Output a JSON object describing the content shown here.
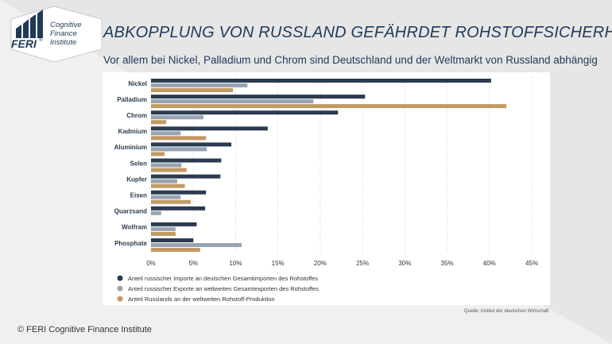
{
  "header": {
    "title": "ABKOPPLUNG VON RUSSLAND GEFÄHRDET ROHSTOFFSICHERHEIT",
    "subtitle": "Vor allem bei Nickel, Palladium und Chrom sind Deutschland und der Weltmarkt von Russland abhängig"
  },
  "logo": {
    "brand": "FERI",
    "mark": "®",
    "line1": "Cognitive",
    "line2": "Finance",
    "line3": "Institute"
  },
  "footer": {
    "source": "Quelle: Institut der deutschen Wirtschaft",
    "copyright": "© FERI Cognitive Finance Institute"
  },
  "colors": {
    "dark": "#2b3b50",
    "light": "#99a4b2",
    "gold": "#c39a62",
    "title": "#1f3a5a"
  },
  "chart_data": {
    "type": "bar",
    "orientation": "horizontal",
    "categories": [
      "Nickel",
      "Palladium",
      "Chrom",
      "Kadmium",
      "Aluminium",
      "Selen",
      "Kupfer",
      "Eisen",
      "Quarzsand",
      "Wolfram",
      "Phosphate"
    ],
    "series": [
      {
        "name": "Anteil russischer Importe an deutschen Gesamtimporten des Rohstoffes",
        "values": [
          40.2,
          25.3,
          22.1,
          13.8,
          9.5,
          8.3,
          8.2,
          6.5,
          6.4,
          5.4,
          5.0
        ]
      },
      {
        "name": "Anteil russischer Exporte an weltweiten Gesamtexporten des Rohstoffes",
        "values": [
          11.4,
          19.2,
          6.2,
          3.5,
          6.6,
          3.6,
          3.1,
          3.5,
          1.2,
          2.9,
          10.7
        ]
      },
      {
        "name": "Anteil Russlands an der weltweiten Rohstoff-Produktion",
        "values": [
          9.7,
          42.0,
          1.8,
          6.5,
          1.6,
          4.2,
          4.0,
          4.7,
          0,
          2.9,
          5.8
        ]
      }
    ],
    "xlim": [
      0,
      45
    ],
    "ticks": [
      0,
      5,
      10,
      15,
      20,
      25,
      30,
      35,
      40,
      45
    ],
    "tick_labels": [
      "0%",
      "5%",
      "10%",
      "15%",
      "20%",
      "25%",
      "30%",
      "35%",
      "40%",
      "45%"
    ],
    "grid": true,
    "legend_position": "bottom"
  }
}
